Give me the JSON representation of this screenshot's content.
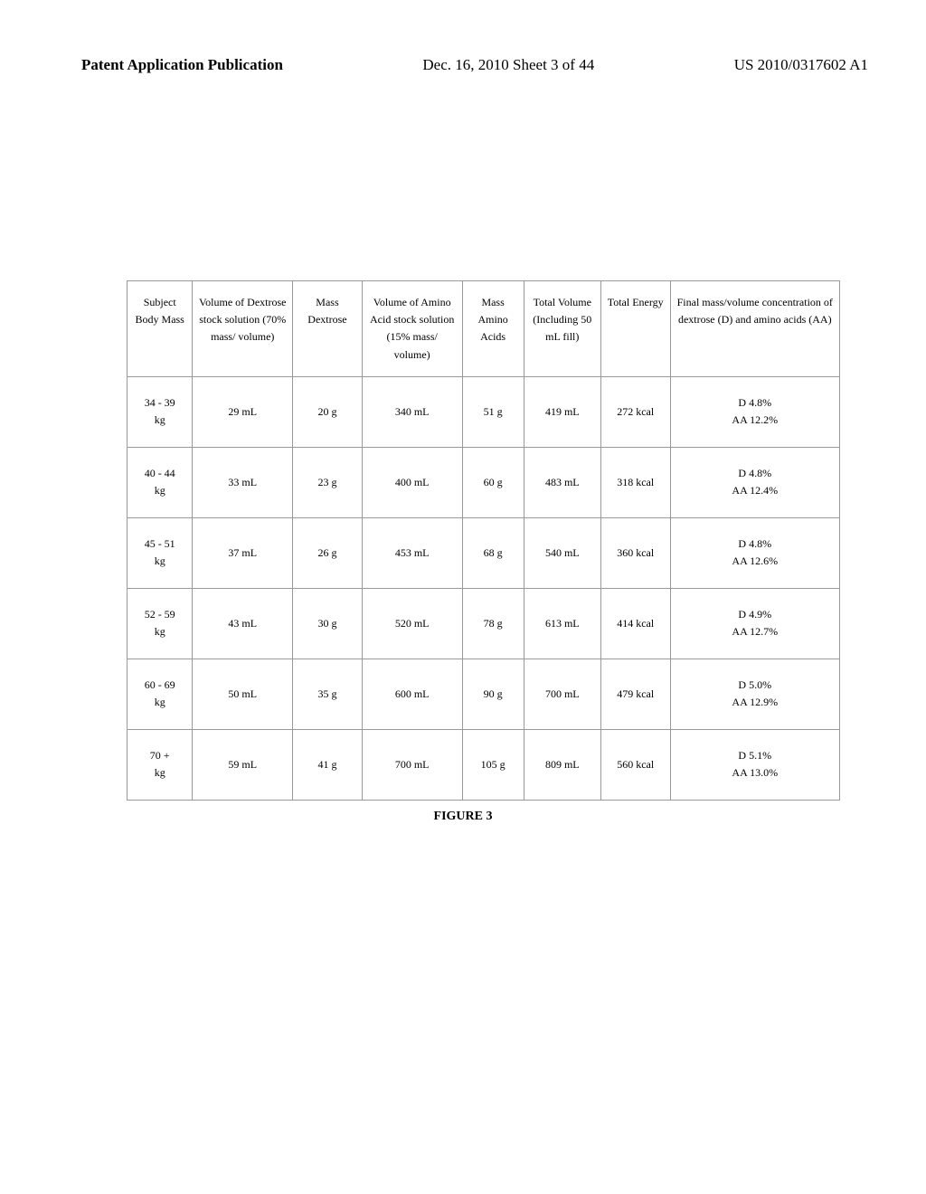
{
  "header": {
    "left": "Patent Application Publication",
    "center": "Dec. 16, 2010  Sheet 3 of 44",
    "right": "US 2010/0317602 A1"
  },
  "table": {
    "columns": [
      "Subject Body Mass",
      "Volume of Dextrose stock solution (70% mass/ volume)",
      "Mass Dextrose",
      "Volume of Amino Acid stock solution (15% mass/ volume)",
      "Mass Amino Acids",
      "Total Volume (Including 50 mL fill)",
      "Total Energy",
      "Final mass/volume concentration of dextrose (D) and amino acids (AA)"
    ],
    "rows": [
      {
        "body_mass": "34 - 39 kg",
        "dextrose_vol": "29 mL",
        "dextrose_mass": "20 g",
        "amino_vol": "340 mL",
        "amino_mass": "51 g",
        "total_vol": "419 mL",
        "total_energy": "272 kcal",
        "concentration": "D 4.8% AA 12.2%"
      },
      {
        "body_mass": "40 - 44 kg",
        "dextrose_vol": "33 mL",
        "dextrose_mass": "23 g",
        "amino_vol": "400 mL",
        "amino_mass": "60 g",
        "total_vol": "483 mL",
        "total_energy": "318 kcal",
        "concentration": "D 4.8% AA 12.4%"
      },
      {
        "body_mass": "45 - 51 kg",
        "dextrose_vol": "37 mL",
        "dextrose_mass": "26 g",
        "amino_vol": "453 mL",
        "amino_mass": "68 g",
        "total_vol": "540 mL",
        "total_energy": "360 kcal",
        "concentration": "D 4.8% AA 12.6%"
      },
      {
        "body_mass": "52 - 59 kg",
        "dextrose_vol": "43 mL",
        "dextrose_mass": "30 g",
        "amino_vol": "520 mL",
        "amino_mass": "78 g",
        "total_vol": "613 mL",
        "total_energy": "414 kcal",
        "concentration": "D 4.9% AA 12.7%"
      },
      {
        "body_mass": "60 - 69 kg",
        "dextrose_vol": "50 mL",
        "dextrose_mass": "35 g",
        "amino_vol": "600 mL",
        "amino_mass": "90 g",
        "total_vol": "700 mL",
        "total_energy": "479 kcal",
        "concentration": "D 5.0% AA 12.9%"
      },
      {
        "body_mass": "70 + kg",
        "dextrose_vol": "59 mL",
        "dextrose_mass": "41 g",
        "amino_vol": "700 mL",
        "amino_mass": "105 g",
        "total_vol": "809 mL",
        "total_energy": "560 kcal",
        "concentration": "D 5.1% AA 13.0%"
      }
    ]
  },
  "figure_label": "FIGURE 3"
}
